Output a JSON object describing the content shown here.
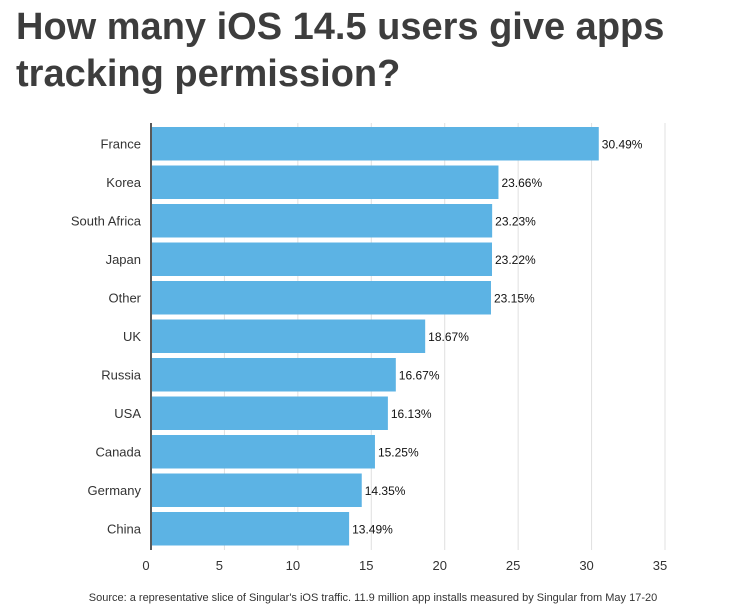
{
  "title": "How many iOS 14.5 users give apps tracking permission?",
  "source": "Source: a representative slice of Singular's iOS traffic. 11.9 million app installs measured by Singular from May 17-20",
  "colors": {
    "bar": "#5cb3e4",
    "grid": "#e0e0e0",
    "axis": "#222222",
    "text": "#333333"
  },
  "chart_data": {
    "type": "bar",
    "orientation": "horizontal",
    "categories": [
      "France",
      "Korea",
      "South Africa",
      "Japan",
      "Other",
      "UK",
      "Russia",
      "USA",
      "Canada",
      "Germany",
      "China"
    ],
    "values": [
      30.49,
      23.66,
      23.23,
      23.22,
      23.15,
      18.67,
      16.67,
      16.13,
      15.25,
      14.35,
      13.49
    ],
    "data_labels": [
      "30.49%",
      "23.66%",
      "23.23%",
      "23.22%",
      "23.15%",
      "18.67%",
      "16.67%",
      "16.13%",
      "15.25%",
      "14.35%",
      "13.49%"
    ],
    "x_ticks": [
      0,
      5,
      10,
      15,
      20,
      25,
      30,
      35
    ],
    "xlim": [
      0,
      35
    ],
    "grid": true,
    "legend": false
  }
}
